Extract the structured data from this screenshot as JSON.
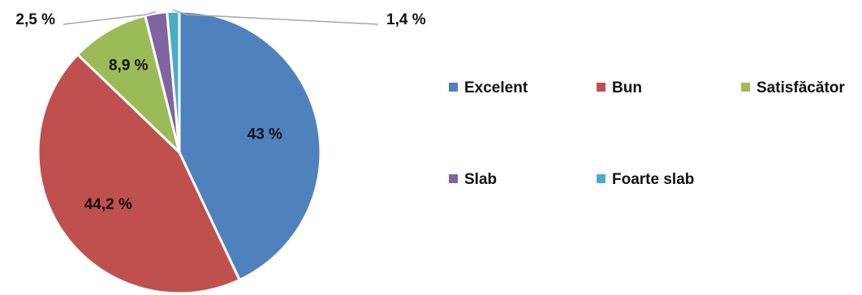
{
  "chart_data": {
    "type": "pie",
    "categories": [
      "Excelent",
      "Bun",
      "Satisfăcător",
      "Slab",
      "Foarte slab"
    ],
    "values": [
      43,
      44.2,
      8.9,
      2.5,
      1.4
    ],
    "data_labels": [
      "43 %",
      "44,2 %",
      "8,9 %",
      "2,5 %",
      "1,4 %"
    ],
    "colors": [
      "#4f81bd",
      "#c0504d",
      "#9bbb59",
      "#8064a2",
      "#4bacc6"
    ],
    "legend_position": "right",
    "start_angle": "12 o'clock",
    "direction": "clockwise"
  }
}
